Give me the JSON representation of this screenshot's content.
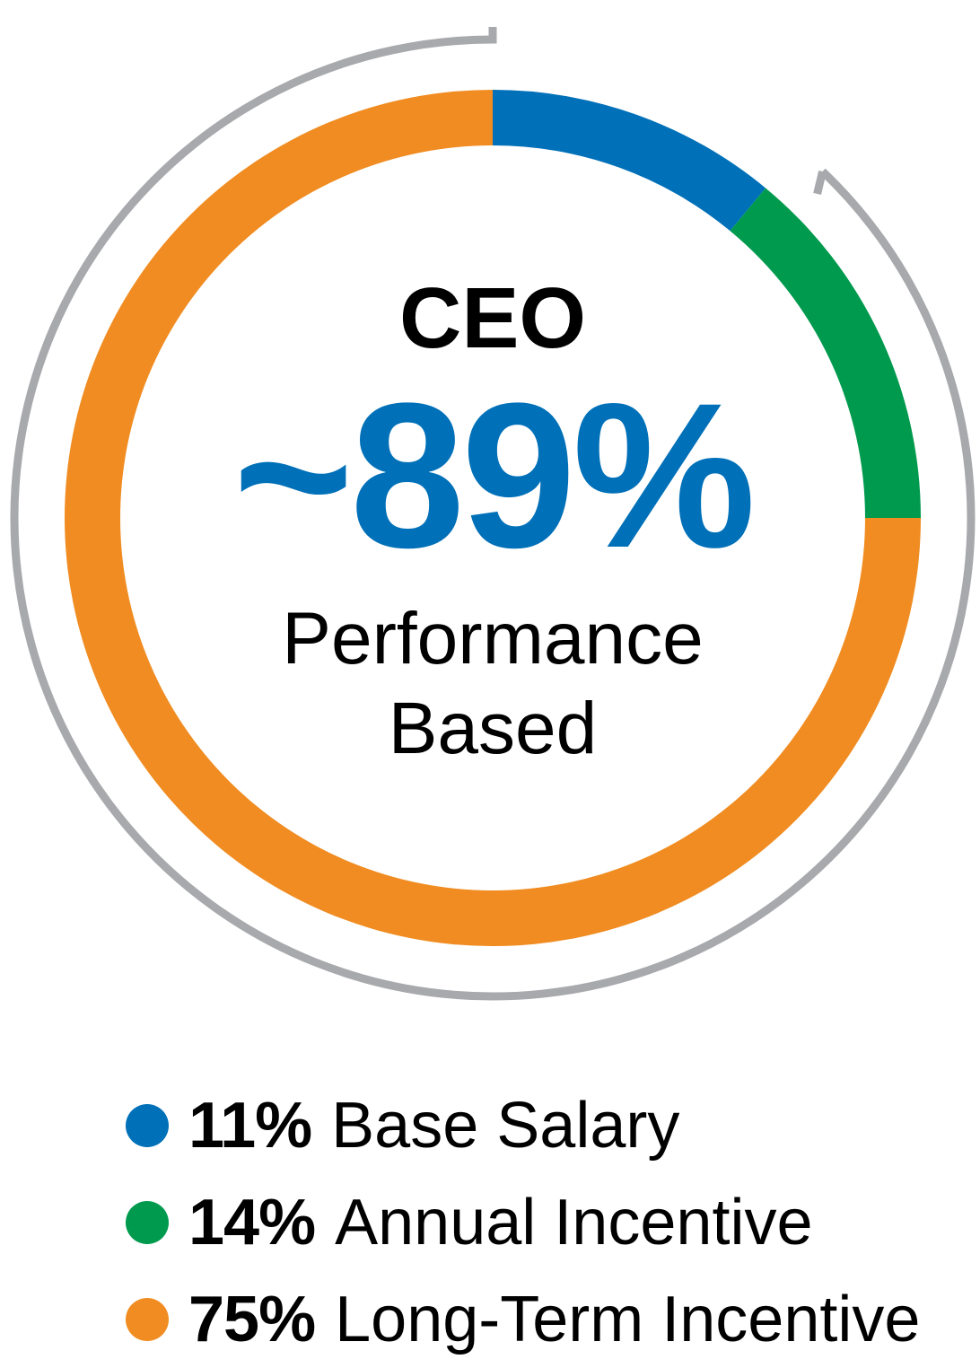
{
  "chart_data": {
    "type": "pie",
    "subtype": "donut",
    "center": {
      "role": "CEO",
      "headline": "~89%",
      "caption_line1": "Performance",
      "caption_line2": "Based"
    },
    "slices": [
      {
        "label": "Base Salary",
        "value": 11,
        "value_label": "11%",
        "color": "#0070b8"
      },
      {
        "label": "Annual Incentive",
        "value": 14,
        "value_label": "14%",
        "color": "#009a4e"
      },
      {
        "label": "Long-Term Incentive",
        "value": 75,
        "value_label": "75%",
        "color": "#f08c21"
      }
    ],
    "outer_bracket": {
      "description_value": 89,
      "color": "#a7a9ac"
    },
    "colors": {
      "headline": "#0070b8",
      "text": "#000000"
    }
  }
}
